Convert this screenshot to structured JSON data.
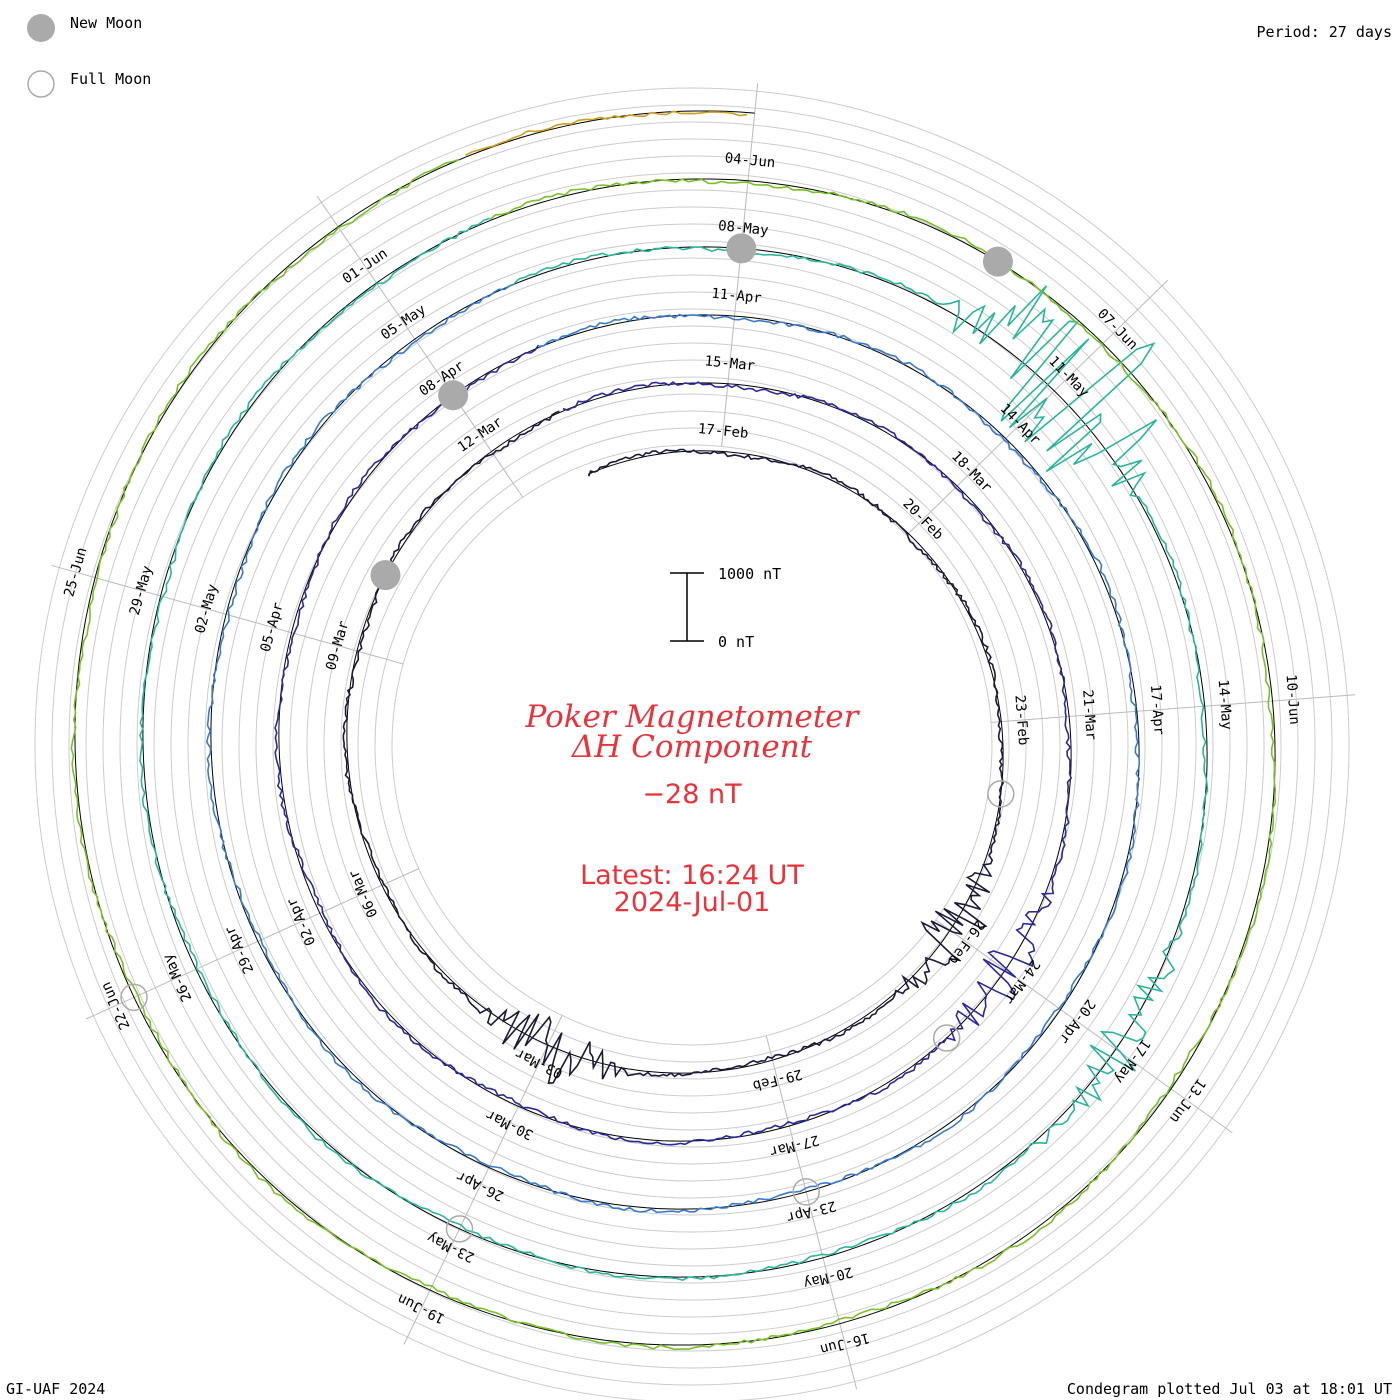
{
  "header": {
    "period": "Period: 27 days"
  },
  "legend": {
    "new_moon": "New Moon",
    "full_moon": "Full Moon",
    "new_moon_color": "#aaaaaa",
    "full_moon_color": "#aaaaaa"
  },
  "center": {
    "title_line1": "Poker Magnetometer",
    "title_line2": "ΔH Component",
    "current_value": "−28 nT",
    "latest": "Latest: 16:24 UT",
    "latest_date": "2024-Jul-01",
    "scale_top": "1000 nT",
    "scale_bottom": "0 nT",
    "text_color": "#e8333b"
  },
  "footer": {
    "left": "GI-UAF 2024",
    "right": "Condegram plotted Jul 03 at 18:01 UT"
  },
  "chart_data": {
    "type": "line",
    "title": "Poker Magnetometer ΔH Component",
    "period_days": 27,
    "start_date": "2024-02-15",
    "end_date": "2024-07-01",
    "scale_nT": [
      0,
      1000
    ],
    "date_labels": [
      "20-Feb",
      "23-Feb",
      "26-Feb",
      "29-Feb",
      "03-Mar",
      "06-Mar",
      "09-Mar",
      "12-Mar",
      "15-Mar",
      "17-Feb",
      "18-Mar",
      "21-Mar",
      "24-Mar",
      "27-Mar",
      "30-Mar",
      "02-Apr",
      "05-Apr",
      "08-Apr",
      "11-Apr",
      "14-Apr",
      "17-Apr",
      "20-Apr",
      "23-Apr",
      "26-Apr",
      "29-Apr",
      "02-May",
      "05-May",
      "08-May",
      "11-May",
      "14-May",
      "17-May",
      "20-May",
      "23-May",
      "26-May",
      "29-May",
      "01-Jun",
      "04-Jun",
      "07-Jun",
      "10-Jun",
      "13-Jun",
      "16-Jun",
      "19-Jun",
      "22-Jun",
      "25-Jun"
    ],
    "series": [
      {
        "name": "",
        "start": "2024-02-15",
        "end": "2024-03-13",
        "color": "#1a1a3a"
      },
      {
        "name": "",
        "start": "2024-03-13",
        "end": "2024-04-09",
        "color": "#2a2a9a"
      },
      {
        "name": "",
        "start": "2024-04-09",
        "end": "2024-05-06",
        "color": "#3a7acc"
      },
      {
        "name": "",
        "start": "2024-05-06",
        "end": "2024-06-02",
        "color": "#2ab59a"
      },
      {
        "name": "",
        "start": "2024-06-02",
        "end": "2024-06-29",
        "color": "#7abf2a"
      },
      {
        "name": "",
        "start": "2024-06-29",
        "end": "2024-07-01",
        "color": "#c9a020"
      }
    ],
    "new_moons": [
      "2024-03-10",
      "2024-04-08",
      "2024-05-08",
      "2024-06-06"
    ],
    "full_moons": [
      "2024-02-24",
      "2024-03-25",
      "2024-04-23",
      "2024-05-23",
      "2024-06-22"
    ],
    "storm_events": [
      {
        "date": "2024-02-26",
        "peak_nT": 600
      },
      {
        "date": "2024-03-03",
        "peak_nT": 700
      },
      {
        "date": "2024-03-24",
        "peak_nT": 500
      },
      {
        "date": "2024-05-11",
        "peak_nT": 2400
      },
      {
        "date": "2024-05-17",
        "peak_nT": 500
      }
    ]
  }
}
